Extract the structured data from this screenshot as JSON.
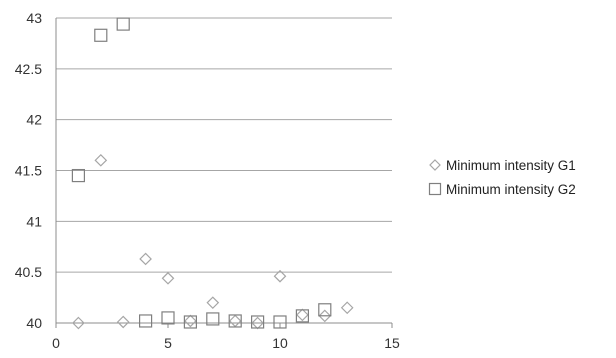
{
  "chart_data": {
    "type": "scatter",
    "title": "",
    "xlabel": "",
    "ylabel": "",
    "xlim": [
      0,
      15
    ],
    "ylim": [
      40,
      43
    ],
    "x_ticks": [
      "0",
      "5",
      "10",
      "15"
    ],
    "y_ticks": [
      "40",
      "40.5",
      "41",
      "41.5",
      "42",
      "42.5",
      "43"
    ],
    "grid": "horizontal",
    "legend_position": "right",
    "series": [
      {
        "name": "Minimum intensity G1",
        "marker": "diamond",
        "color": "#a6a6a6",
        "points": [
          {
            "x": 1,
            "y": 40.0
          },
          {
            "x": 2,
            "y": 41.6
          },
          {
            "x": 3,
            "y": 40.01
          },
          {
            "x": 4,
            "y": 40.63
          },
          {
            "x": 5,
            "y": 40.44
          },
          {
            "x": 6,
            "y": 40.02
          },
          {
            "x": 7,
            "y": 40.2
          },
          {
            "x": 8,
            "y": 40.02
          },
          {
            "x": 9,
            "y": 40.0
          },
          {
            "x": 10,
            "y": 40.46
          },
          {
            "x": 11,
            "y": 40.08
          },
          {
            "x": 12,
            "y": 40.07
          },
          {
            "x": 13,
            "y": 40.15
          }
        ]
      },
      {
        "name": "Minimum intensity G2",
        "marker": "square",
        "color": "#7f7f7f",
        "points": [
          {
            "x": 1,
            "y": 41.45
          },
          {
            "x": 2,
            "y": 42.83
          },
          {
            "x": 3,
            "y": 42.94
          },
          {
            "x": 4,
            "y": 40.02
          },
          {
            "x": 5,
            "y": 40.05
          },
          {
            "x": 6,
            "y": 40.01
          },
          {
            "x": 7,
            "y": 40.04
          },
          {
            "x": 8,
            "y": 40.02
          },
          {
            "x": 9,
            "y": 40.01
          },
          {
            "x": 10,
            "y": 40.01
          },
          {
            "x": 11,
            "y": 40.07
          },
          {
            "x": 12,
            "y": 40.13
          }
        ]
      }
    ]
  }
}
